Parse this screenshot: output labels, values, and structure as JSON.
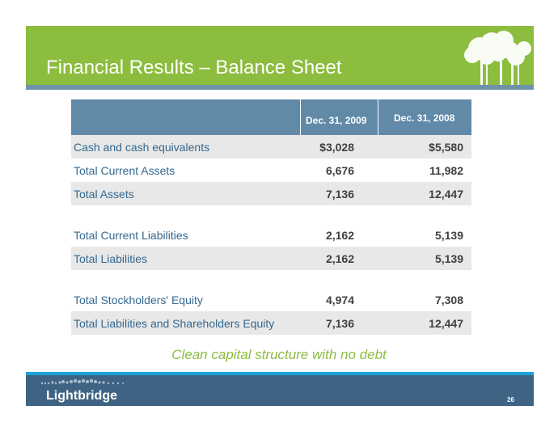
{
  "slide": {
    "title": "Financial Results – Balance Sheet",
    "tagline": "Clean capital structure with no debt",
    "page_number": "26"
  },
  "brand": {
    "logo_text": "Lightbridge",
    "colors": {
      "green": "#8cbd3f",
      "slate": "#6189a8",
      "navy": "#3f6384",
      "cyan": "#1ba1d9",
      "label_blue": "#34688f"
    }
  },
  "table": {
    "headers": [
      "Dec. 31, 2009",
      "Dec. 31, 2008"
    ],
    "rows": [
      {
        "label": "Cash and cash equivalents",
        "v2009": "$3,028",
        "v2008": "$5,580"
      },
      {
        "label": "Total Current Assets",
        "v2009": "6,676",
        "v2008": "11,982"
      },
      {
        "label": "Total Assets",
        "v2009": "7,136",
        "v2008": "12,447"
      },
      {
        "label": "Total Current Liabilities",
        "v2009": "2,162",
        "v2008": "5,139"
      },
      {
        "label": "Total Liabilities",
        "v2009": "2,162",
        "v2008": "5,139"
      },
      {
        "label": "Total Stockholders' Equity",
        "v2009": "4,974",
        "v2008": "7,308"
      },
      {
        "label": "Total Liabilities and Shareholders Equity",
        "v2009": "7,136",
        "v2008": "12,447"
      }
    ]
  },
  "icons": {
    "header_graphic": "trees-icon",
    "logo_graphic": "dots-logo-icon"
  }
}
